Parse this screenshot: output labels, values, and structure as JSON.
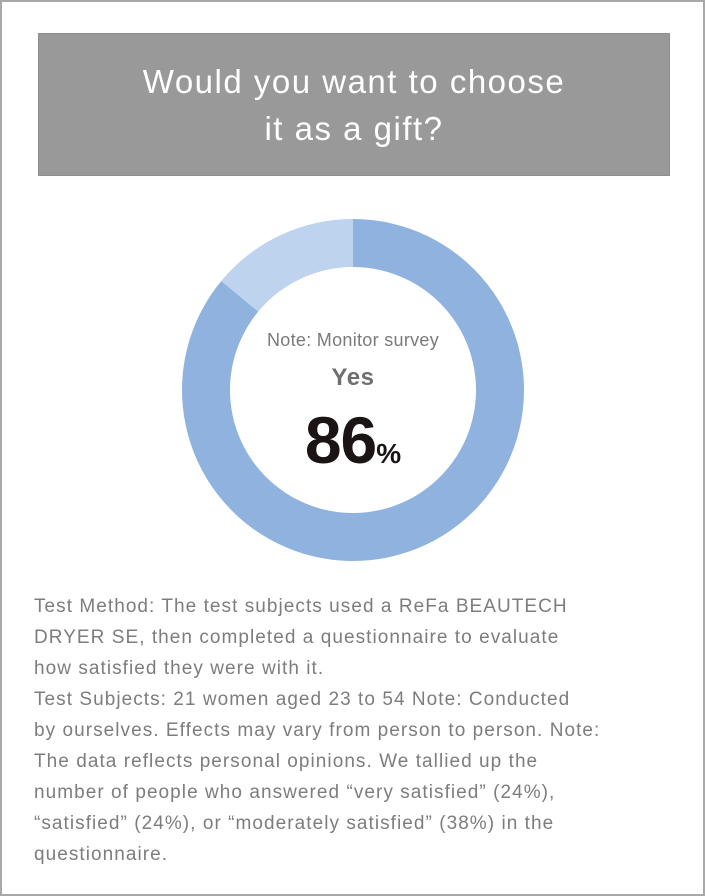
{
  "title": {
    "line1": "Would you want to choose",
    "line2": "it as a gift?"
  },
  "center": {
    "note": "Note: Monitor survey",
    "answer": "Yes",
    "value": "86",
    "unit": "%"
  },
  "chart_data": {
    "type": "pie",
    "donut": true,
    "categories": [
      "Yes",
      ""
    ],
    "values": [
      86,
      14
    ],
    "unit": "%",
    "colors": [
      "#8fb3de",
      "#bdd3ee"
    ],
    "title": "Would you want to choose it as a gift?"
  },
  "notes": {
    "method": "Test Method: The test subjects used a ReFa BEAUTECH\nDRYER SE, then completed a questionnaire to evaluate\nhow satisfied they were with it.",
    "subjects": "Test Subjects: 21 women aged 23 to 54 Note: Conducted\nby ourselves. Effects may vary from person to person. Note:\nThe data reflects personal opinions. We tallied up the\nnumber of people who answered “very satisfied” (24%),\n“satisfied” (24%), or “moderately satisfied” (38%) in the\nquestionnaire."
  }
}
